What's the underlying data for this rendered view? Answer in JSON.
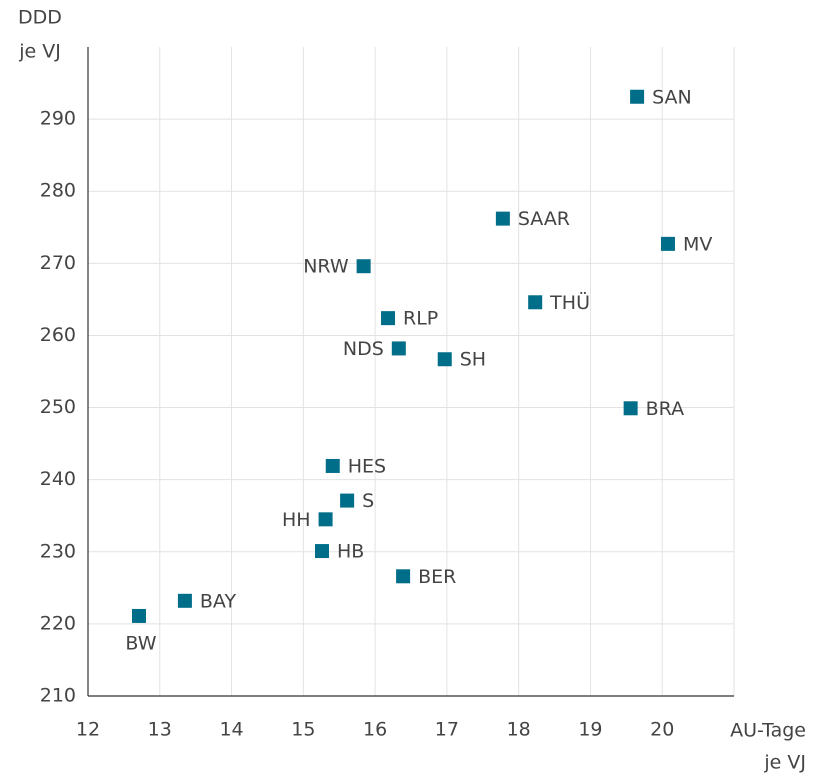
{
  "chart_data": {
    "type": "scatter",
    "x_label": [
      "AU-Tage",
      "je VJ"
    ],
    "y_label": [
      "DDD",
      "je VJ"
    ],
    "color": "#006e89",
    "xlim": [
      12,
      21
    ],
    "xticks": [
      12,
      13,
      14,
      15,
      16,
      17,
      18,
      19,
      20
    ],
    "ylim": [
      210,
      300
    ],
    "yticks": [
      210,
      220,
      230,
      240,
      250,
      260,
      270,
      280,
      290
    ],
    "grid": true,
    "labels": [
      "SAN",
      "SAAR",
      "MV",
      "NRW",
      "THÜ",
      "RLP",
      "NDS",
      "SH",
      "BRA",
      "HES",
      "S",
      "HH",
      "HB",
      "BER",
      "BAY",
      "BW"
    ],
    "x": [
      19.65,
      17.78,
      20.08,
      15.84,
      18.23,
      16.18,
      16.33,
      16.97,
      19.56,
      15.41,
      15.61,
      15.31,
      15.26,
      16.39,
      13.35,
      12.71
    ],
    "values": [
      293.1,
      276.2,
      272.7,
      269.6,
      264.6,
      262.4,
      258.2,
      256.7,
      249.9,
      241.9,
      237.1,
      234.5,
      230.1,
      226.6,
      223.2,
      221.1
    ]
  }
}
